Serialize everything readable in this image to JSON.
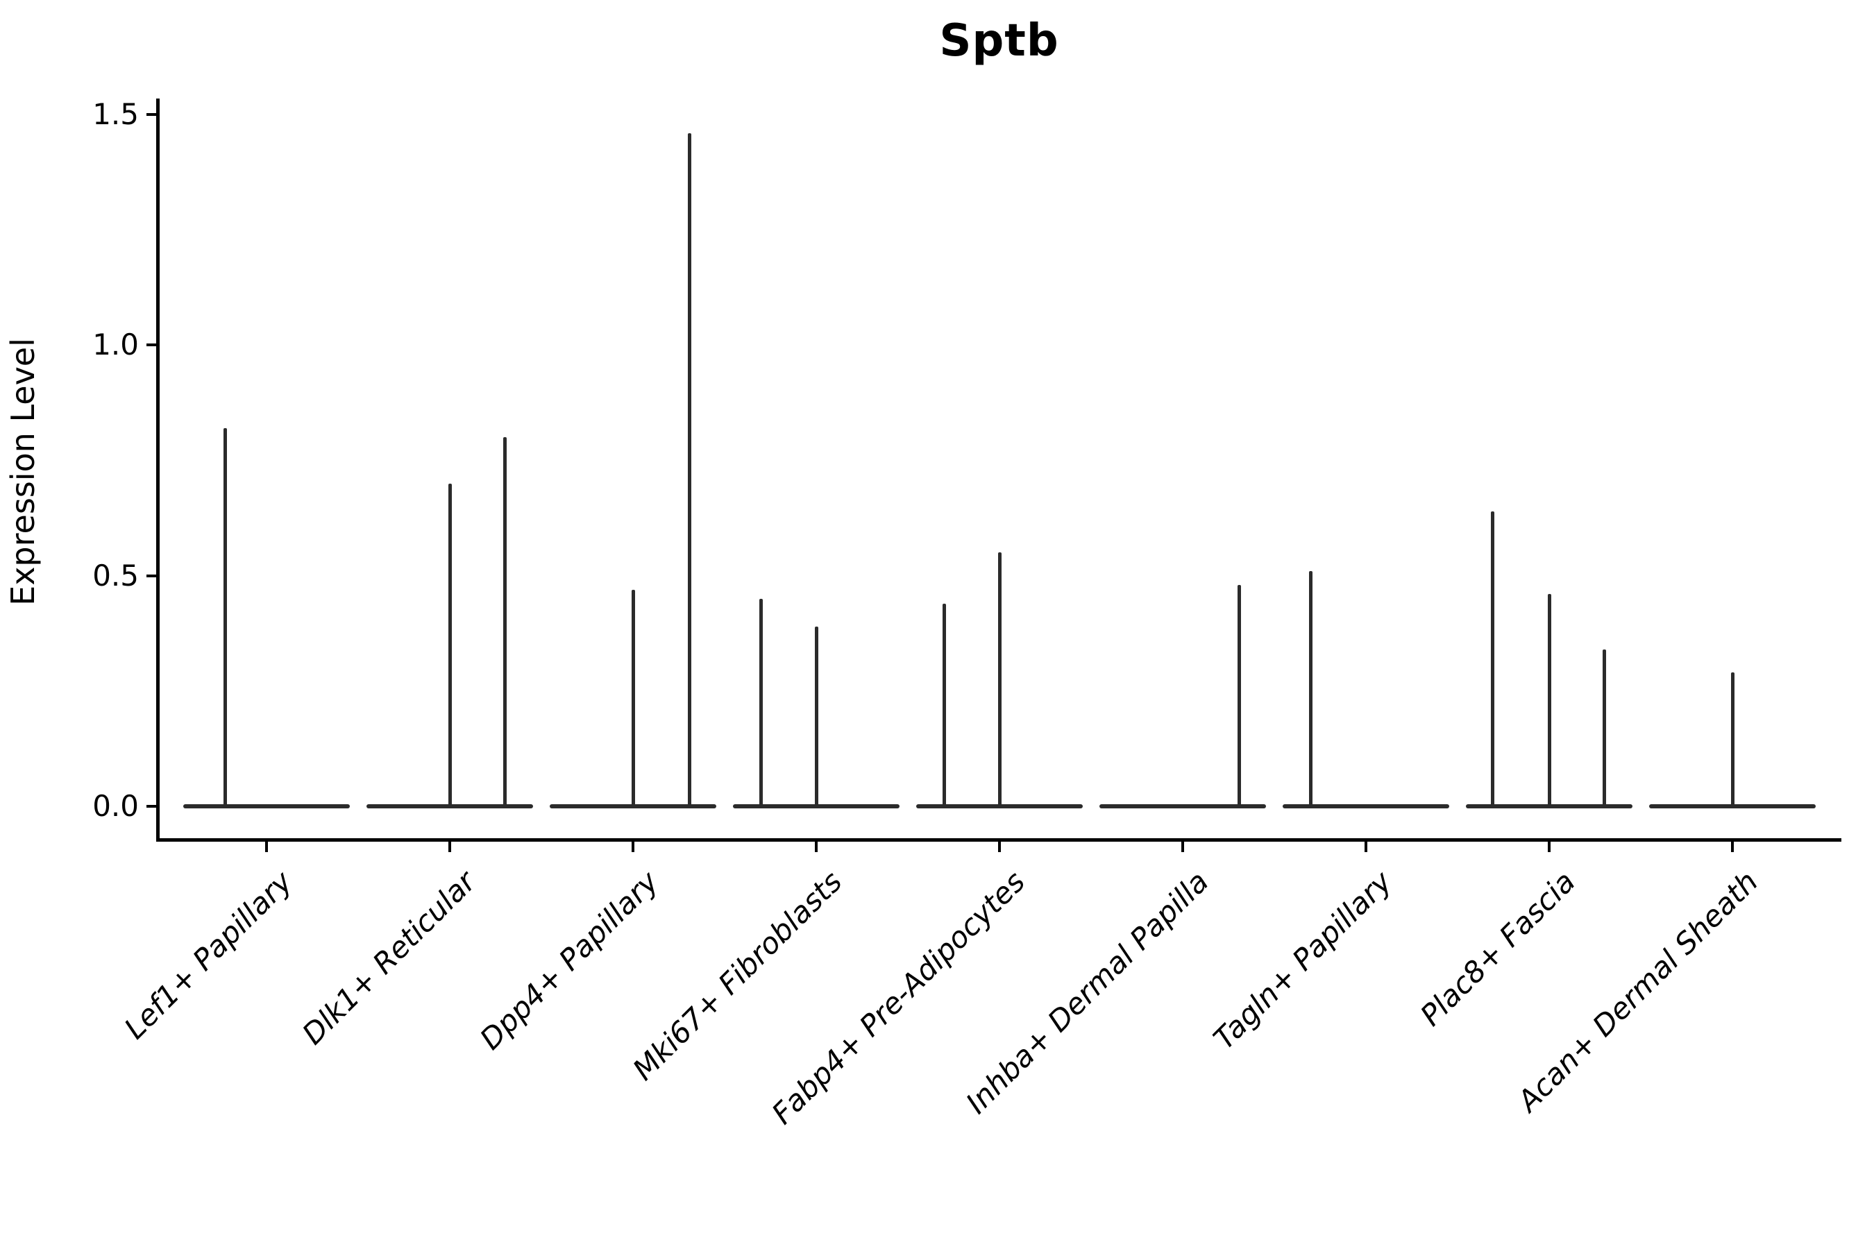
{
  "chart_data": {
    "type": "violin",
    "title": "Sptb",
    "xlabel": "",
    "ylabel": "Expression Level",
    "yticks": [
      0.0,
      0.5,
      1.0,
      1.5
    ],
    "ytick_labels": [
      "0.0",
      "0.5",
      "1.0",
      "1.5"
    ],
    "ylim": [
      -0.07,
      1.53
    ],
    "grid": false,
    "legend": false,
    "baseline_value": 0.0,
    "line_color": "#2b2b2b",
    "axis_color": "#000000",
    "categories": [
      "Lef1+ Papillary",
      "Dlk1+ Reticular",
      "Dpp4+ Papillary",
      "Mki67+ Fibroblasts",
      "Fabp4+ Pre-Adipocytes",
      "Inhba+ Dermal Papilla",
      "Tagln+ Papillary",
      "Plac8+ Fascia",
      "Acan+ Dermal Sheath"
    ],
    "violins": [
      {
        "category": "Lef1+ Papillary",
        "spikes": [
          {
            "frac": 0.25,
            "max": 0.82
          }
        ]
      },
      {
        "category": "Dlk1+ Reticular",
        "spikes": [
          {
            "frac": 0.5,
            "max": 0.7
          },
          {
            "frac": 0.83,
            "max": 0.8
          }
        ]
      },
      {
        "category": "Dpp4+ Papillary",
        "spikes": [
          {
            "frac": 0.5,
            "max": 0.47
          },
          {
            "frac": 0.84,
            "max": 1.46
          }
        ]
      },
      {
        "category": "Mki67+ Fibroblasts",
        "spikes": [
          {
            "frac": 0.17,
            "max": 0.45
          },
          {
            "frac": 0.5,
            "max": 0.39
          }
        ]
      },
      {
        "category": "Fabp4+ Pre-Adipocytes",
        "spikes": [
          {
            "frac": 0.17,
            "max": 0.44
          },
          {
            "frac": 0.5,
            "max": 0.55
          }
        ]
      },
      {
        "category": "Inhba+ Dermal Papilla",
        "spikes": [
          {
            "frac": 0.84,
            "max": 0.48
          }
        ]
      },
      {
        "category": "Tagln+ Papillary",
        "spikes": [
          {
            "frac": 0.17,
            "max": 0.51
          }
        ]
      },
      {
        "category": "Plac8+ Fascia",
        "spikes": [
          {
            "frac": 0.16,
            "max": 0.64
          },
          {
            "frac": 0.5,
            "max": 0.46
          },
          {
            "frac": 0.83,
            "max": 0.34
          }
        ]
      },
      {
        "category": "Acan+ Dermal Sheath",
        "spikes": [
          {
            "frac": 0.5,
            "max": 0.29
          }
        ]
      }
    ]
  }
}
